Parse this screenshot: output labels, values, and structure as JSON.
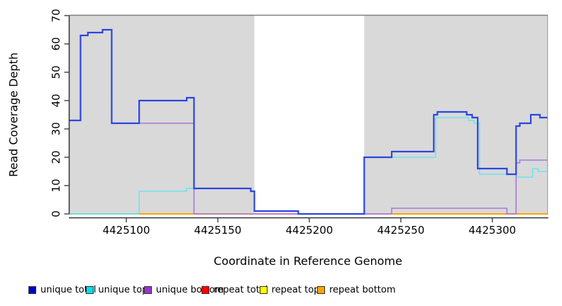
{
  "figure": {
    "xlabel": "Coordinate in Reference Genome",
    "ylabel": "Read Coverage Depth"
  },
  "chart_data": {
    "type": "line",
    "subtype": "step-coverage-plot",
    "title": "",
    "xlabel": "Coordinate in Reference Genome",
    "ylabel": "Read Coverage Depth",
    "xlim": [
      4425069,
      4425330
    ],
    "ylim": [
      0,
      70
    ],
    "x_ticks": [
      4425100,
      4425150,
      4425200,
      4425250,
      4425300
    ],
    "y_ticks": [
      0,
      10,
      20,
      30,
      40,
      50,
      60,
      70
    ],
    "grid": false,
    "legend_position": "bottom",
    "background_bands": [
      {
        "from": 4425069,
        "to": 4425170,
        "color": "#d9d9d9"
      },
      {
        "from": 4425230,
        "to": 4425330,
        "color": "#d9d9d9"
      }
    ],
    "band_top_border_color": "#808080",
    "series": [
      {
        "name": "unique total",
        "color": "#2c46df",
        "width": 2.2,
        "points": [
          [
            4425069,
            33
          ],
          [
            4425075,
            63
          ],
          [
            4425079,
            64
          ],
          [
            4425087,
            65
          ],
          [
            4425092,
            32
          ],
          [
            4425107,
            40
          ],
          [
            4425133,
            41
          ],
          [
            4425137,
            9
          ],
          [
            4425168,
            8
          ],
          [
            4425170,
            1
          ],
          [
            4425194,
            0
          ],
          [
            4425230,
            20
          ],
          [
            4425245,
            22
          ],
          [
            4425268,
            35
          ],
          [
            4425270,
            36
          ],
          [
            4425286,
            35
          ],
          [
            4425289,
            34
          ],
          [
            4425292,
            16
          ],
          [
            4425308,
            14
          ],
          [
            4425313,
            31
          ],
          [
            4425315,
            32
          ],
          [
            4425321,
            35
          ],
          [
            4425326,
            34
          ],
          [
            4425330,
            34
          ]
        ]
      },
      {
        "name": "unique top",
        "color": "#6fe2ee",
        "width": 1.6,
        "points": [
          [
            4425069,
            0
          ],
          [
            4425107,
            8
          ],
          [
            4425133,
            9
          ],
          [
            4425168,
            8
          ],
          [
            4425170,
            1
          ],
          [
            4425194,
            0
          ],
          [
            4425230,
            20
          ],
          [
            4425269,
            34
          ],
          [
            4425287,
            33
          ],
          [
            4425290,
            32
          ],
          [
            4425293,
            14
          ],
          [
            4425313,
            13
          ],
          [
            4425322,
            16
          ],
          [
            4425325,
            15
          ],
          [
            4425330,
            15
          ]
        ]
      },
      {
        "name": "unique bottom",
        "color": "#a877de",
        "width": 1.6,
        "points": [
          [
            4425069,
            33
          ],
          [
            4425075,
            63
          ],
          [
            4425079,
            64
          ],
          [
            4425087,
            65
          ],
          [
            4425092,
            32
          ],
          [
            4425137,
            0
          ],
          [
            4425245,
            2
          ],
          [
            4425308,
            0
          ],
          [
            4425313,
            18
          ],
          [
            4425315,
            19
          ],
          [
            4425330,
            19
          ]
        ]
      },
      {
        "name": "repeat total",
        "color": "#cc3344",
        "width": 1.4,
        "points": [
          [
            4425069,
            0
          ],
          [
            4425330,
            0
          ]
        ]
      },
      {
        "name": "repeat top",
        "color": "#e6e600",
        "width": 1.4,
        "points": [
          [
            4425069,
            0
          ],
          [
            4425330,
            0
          ]
        ]
      },
      {
        "name": "repeat bottom",
        "color": "#ffa500",
        "width": 1.4,
        "points": [
          [
            4425069,
            0
          ],
          [
            4425330,
            0
          ]
        ]
      }
    ],
    "baseline_segments": [
      {
        "from": 4425069,
        "to": 4425106,
        "color": "#8fce8f"
      },
      {
        "from": 4425106,
        "to": 4425167,
        "color": "#ffa500"
      },
      {
        "from": 4425167,
        "to": 4425245,
        "color": "#ef92a5"
      },
      {
        "from": 4425245,
        "to": 4425330,
        "color": "#ffa500"
      }
    ],
    "legend": [
      {
        "label": "unique total",
        "color": "#0000cd"
      },
      {
        "label": "unique top",
        "color": "#00dfe8"
      },
      {
        "label": "unique bottom",
        "color": "#9932cc"
      },
      {
        "label": "repeat total",
        "color": "#ff0000"
      },
      {
        "label": "repeat top",
        "color": "#ffff00"
      },
      {
        "label": "repeat bottom",
        "color": "#ffa500"
      }
    ]
  }
}
